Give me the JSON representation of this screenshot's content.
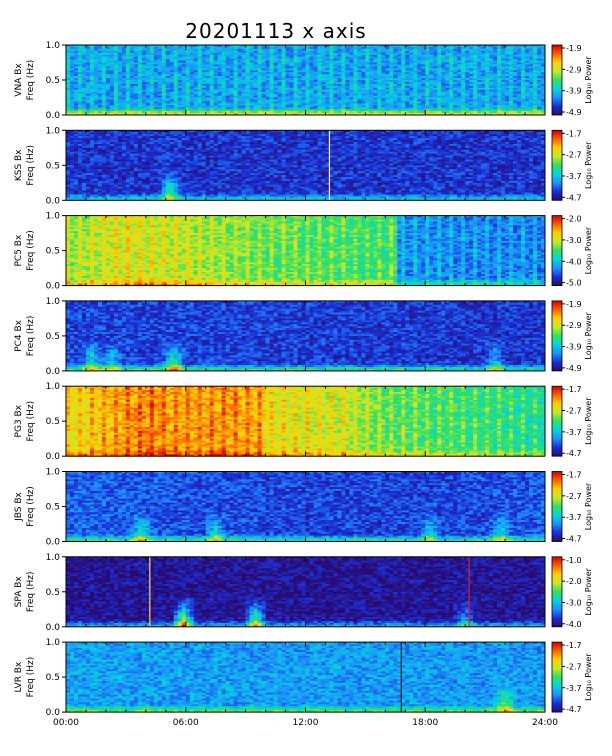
{
  "title": "20201113  x  axis",
  "side_note": "",
  "colors": {
    "background": "#ffffff",
    "axis": "#000000",
    "colormap": [
      "#2a0a6e",
      "#1a2fd6",
      "#1e90ff",
      "#00d8d8",
      "#30e060",
      "#c8e828",
      "#ffd000",
      "#ff6000",
      "#d00000"
    ]
  },
  "chart_data": [
    {
      "type": "heatmap",
      "station": "VNA",
      "ylabel_top": "VNA  Bx",
      "ylabel_bottom": "Freq  (Hz)",
      "x_ticks": [
        "00:00",
        "06:00",
        "12:00",
        "18:00",
        "24:00"
      ],
      "xlim": [
        "00:00",
        "24:00"
      ],
      "y_ticks": [
        "0.0",
        "0.5",
        "1.0"
      ],
      "ylim": [
        0.0,
        1.0
      ],
      "colorbar": {
        "label": "Log₁₀ Power",
        "ticks": [
          "-1.9",
          "-2.9",
          "-3.9",
          "-4.9"
        ],
        "range": [
          -4.9,
          -1.9
        ]
      },
      "base_level": 0.3,
      "profile": [
        [
          0,
          0.3
        ],
        [
          24,
          0.3
        ]
      ],
      "stripes": true,
      "low_freq_band": 0.45,
      "events": [],
      "marker_lines": []
    },
    {
      "type": "heatmap",
      "station": "KSS",
      "ylabel_top": "KSS  Bx",
      "ylabel_bottom": "Freq  (Hz)",
      "x_ticks": [
        "00:00",
        "06:00",
        "12:00",
        "18:00",
        "24:00"
      ],
      "xlim": [
        "00:00",
        "24:00"
      ],
      "y_ticks": [
        "0.0",
        "0.5",
        "1.0"
      ],
      "ylim": [
        0.0,
        1.0
      ],
      "colorbar": {
        "label": "Log₁₀ Power",
        "ticks": [
          "-1.7",
          "-2.7",
          "-3.7",
          "-4.7"
        ],
        "range": [
          -4.7,
          -1.7
        ]
      },
      "base_level": 0.12,
      "profile": [
        [
          0,
          0.12
        ],
        [
          24,
          0.12
        ]
      ],
      "stripes": false,
      "low_freq_band": 0.3,
      "events": [
        [
          5.2,
          0.45
        ]
      ],
      "marker_lines": [
        {
          "hour": 13.2,
          "color": "#ffffff"
        }
      ]
    },
    {
      "type": "heatmap",
      "station": "PC5",
      "ylabel_top": "PC5  Bx",
      "ylabel_bottom": "Freq  (Hz)",
      "x_ticks": [
        "00:00",
        "06:00",
        "12:00",
        "18:00",
        "24:00"
      ],
      "xlim": [
        "00:00",
        "24:00"
      ],
      "y_ticks": [
        "0.0",
        "0.5",
        "1.0"
      ],
      "ylim": [
        0.0,
        1.0
      ],
      "colorbar": {
        "label": "Log₁₀ Power",
        "ticks": [
          "-2.0",
          "-3.0",
          "-4.0",
          "-5.0"
        ],
        "range": [
          -5.0,
          -2.0
        ]
      },
      "base_level": 0.55,
      "profile": [
        [
          0,
          0.58
        ],
        [
          3,
          0.68
        ],
        [
          6,
          0.63
        ],
        [
          10,
          0.55
        ],
        [
          16.5,
          0.5
        ],
        [
          16.6,
          0.27
        ],
        [
          24,
          0.25
        ]
      ],
      "stripes": true,
      "low_freq_band": 0.2,
      "events": [],
      "marker_lines": []
    },
    {
      "type": "heatmap",
      "station": "PC4",
      "ylabel_top": "PC4  Bx",
      "ylabel_bottom": "Freq  (Hz)",
      "x_ticks": [
        "00:00",
        "06:00",
        "12:00",
        "18:00",
        "24:00"
      ],
      "xlim": [
        "00:00",
        "24:00"
      ],
      "y_ticks": [
        "0.0",
        "0.5",
        "1.0"
      ],
      "ylim": [
        0.0,
        1.0
      ],
      "colorbar": {
        "label": "Log₁₀ Power",
        "ticks": [
          "-1.9",
          "-2.9",
          "-3.9",
          "-4.9"
        ],
        "range": [
          -4.9,
          -1.9
        ]
      },
      "base_level": 0.12,
      "profile": [
        [
          0,
          0.15
        ],
        [
          24,
          0.12
        ]
      ],
      "stripes": false,
      "low_freq_band": 0.4,
      "events": [
        [
          1.3,
          0.35
        ],
        [
          2.3,
          0.3
        ],
        [
          5.4,
          0.5
        ],
        [
          21.5,
          0.3
        ]
      ],
      "marker_lines": []
    },
    {
      "type": "heatmap",
      "station": "PG3",
      "ylabel_top": "PG3  Bx",
      "ylabel_bottom": "Freq  (Hz)",
      "x_ticks": [
        "00:00",
        "06:00",
        "12:00",
        "18:00",
        "24:00"
      ],
      "xlim": [
        "00:00",
        "24:00"
      ],
      "y_ticks": [
        "0.0",
        "0.5",
        "1.0"
      ],
      "ylim": [
        0.0,
        1.0
      ],
      "colorbar": {
        "label": "Log₁₀ Power",
        "ticks": [
          "-1.7",
          "-2.7",
          "-3.7",
          "-4.7"
        ],
        "range": [
          -4.7,
          -1.7
        ]
      },
      "base_level": 0.62,
      "profile": [
        [
          0,
          0.7
        ],
        [
          4,
          0.85
        ],
        [
          6,
          0.8
        ],
        [
          8,
          0.82
        ],
        [
          9.8,
          0.8
        ],
        [
          10,
          0.7
        ],
        [
          14,
          0.65
        ],
        [
          16,
          0.55
        ],
        [
          24,
          0.45
        ]
      ],
      "stripes": true,
      "low_freq_band": 0.15,
      "events": [],
      "marker_lines": []
    },
    {
      "type": "heatmap",
      "station": "JBS",
      "ylabel_top": "JBS  Bx",
      "ylabel_bottom": "Freq  (Hz)",
      "x_ticks": [
        "00:00",
        "06:00",
        "12:00",
        "18:00",
        "24:00"
      ],
      "xlim": [
        "00:00",
        "24:00"
      ],
      "y_ticks": [
        "0.0",
        "0.5",
        "1.0"
      ],
      "ylim": [
        0.0,
        1.0
      ],
      "colorbar": {
        "label": "Log₁₀ Power",
        "ticks": [
          "-1.7",
          "-2.7",
          "-3.7",
          "-4.7"
        ],
        "range": [
          -4.7,
          -1.7
        ]
      },
      "base_level": 0.17,
      "profile": [
        [
          0,
          0.2
        ],
        [
          7,
          0.16
        ],
        [
          18,
          0.14
        ],
        [
          24,
          0.18
        ]
      ],
      "stripes": false,
      "low_freq_band": 0.35,
      "events": [
        [
          3.8,
          0.4
        ],
        [
          7.5,
          0.35
        ],
        [
          18.2,
          0.35
        ],
        [
          21.8,
          0.3
        ]
      ],
      "marker_lines": []
    },
    {
      "type": "heatmap",
      "station": "SPA",
      "ylabel_top": "SPA  Bx",
      "ylabel_bottom": "Freq  (Hz)",
      "x_ticks": [
        "00:00",
        "06:00",
        "12:00",
        "18:00",
        "24:00"
      ],
      "xlim": [
        "00:00",
        "24:00"
      ],
      "y_ticks": [
        "0.0",
        "0.5",
        "1.0"
      ],
      "ylim": [
        0.0,
        1.0
      ],
      "colorbar": {
        "label": "Log₁₀ Power",
        "ticks": [
          "-1.0",
          "-2.0",
          "-3.0",
          "-4.0"
        ],
        "range": [
          -4.0,
          -1.0
        ]
      },
      "base_level": 0.04,
      "profile": [
        [
          0,
          0.04
        ],
        [
          24,
          0.04
        ]
      ],
      "stripes": false,
      "low_freq_band": 0.3,
      "events": [
        [
          5.9,
          0.7
        ],
        [
          9.5,
          0.6
        ],
        [
          20.0,
          0.3
        ]
      ],
      "marker_lines": [
        {
          "hour": 4.2,
          "color": "#ffd84a"
        },
        {
          "hour": 20.2,
          "color": "#e02020"
        }
      ]
    },
    {
      "type": "heatmap",
      "station": "LVR",
      "ylabel_top": "LVR  Bx",
      "ylabel_bottom": "Freq  (Hz)",
      "x_ticks": [
        "00:00",
        "06:00",
        "12:00",
        "18:00",
        "24:00"
      ],
      "xlim": [
        "00:00",
        "24:00"
      ],
      "y_ticks": [
        "0.0",
        "0.5",
        "1.0"
      ],
      "ylim": [
        0.0,
        1.0
      ],
      "colorbar": {
        "label": "Log₁₀ Power",
        "ticks": [
          "-1.7",
          "-2.7",
          "-3.7",
          "-4.7"
        ],
        "range": [
          -4.7,
          -1.7
        ]
      },
      "base_level": 0.27,
      "profile": [
        [
          0,
          0.28
        ],
        [
          24,
          0.27
        ]
      ],
      "stripes": false,
      "low_freq_band": 0.3,
      "events": [
        [
          22.0,
          0.35
        ]
      ],
      "marker_lines": [
        {
          "hour": 16.8,
          "color": "#202020"
        }
      ]
    }
  ]
}
